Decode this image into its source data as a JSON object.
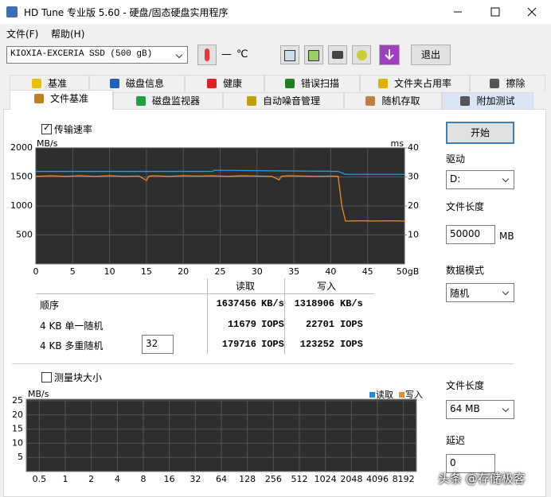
{
  "window": {
    "title": "HD Tune 专业版 5.60 - 硬盘/固态硬盘实用程序"
  },
  "menu": [
    "文件(F)",
    "帮助(H)"
  ],
  "toolbar": {
    "drive": "KIOXIA-EXCERIA SSD (500 gB)",
    "temperature": "—",
    "temperature_unit": "℃",
    "exit": "退出"
  },
  "tabs": {
    "row1": [
      "基准",
      "磁盘信息",
      "健康",
      "错误扫描",
      "文件夹占用率",
      "擦除"
    ],
    "row2": [
      "文件基准",
      "磁盘监视器",
      "自动噪音管理",
      "随机存取",
      "附加测试"
    ]
  },
  "transfer": {
    "checkbox": "传输速率",
    "checked": true
  },
  "results": {
    "headers": [
      "读取",
      "写入"
    ],
    "rows": [
      {
        "label": "顺序",
        "read": 1637456,
        "read_unit": "KB/s",
        "write": 1318906,
        "write_unit": "KB/s"
      },
      {
        "label": "4 KB 单一随机",
        "read": 11679,
        "read_unit": "IOPS",
        "write": 22701,
        "write_unit": "IOPS"
      },
      {
        "label": "4 KB 多重随机",
        "read": 179716,
        "read_unit": "IOPS",
        "write": 123252,
        "write_unit": "IOPS"
      }
    ],
    "queue_depth": 32
  },
  "settings": {
    "start": "开始",
    "drive_label": "驱动",
    "drive": "D:",
    "file_length_label": "文件长度",
    "file_length": 50000,
    "file_length_unit": "MB",
    "data_mode_label": "数据模式",
    "data_mode": "随机"
  },
  "block": {
    "checkbox": "测量块大小",
    "checked": false,
    "file_length_label": "文件长度",
    "file_length": "64 MB",
    "delay_label": "延迟",
    "delay": 0
  },
  "watermark": "头条 @存储极客",
  "chart_data": [
    {
      "type": "line",
      "y_label": "MB/s",
      "y2_label": "ms",
      "xlim": [
        0,
        50
      ],
      "xticks": [
        0,
        5,
        10,
        15,
        20,
        25,
        30,
        35,
        40,
        45,
        {
          "value": 50,
          "label": "50gB"
        }
      ],
      "ylim": [
        0,
        2000
      ],
      "yticks": [
        500,
        1000,
        1500,
        2000
      ],
      "y2lim": [
        0,
        40
      ],
      "y2ticks": [
        10,
        20,
        30,
        40
      ],
      "grid": true,
      "series": [
        {
          "color": "#1e9ee0",
          "x": [
            0,
            24,
            24.2,
            41,
            42,
            50
          ],
          "values": [
            1595,
            1595,
            1615,
            1595,
            1545,
            1545
          ]
        },
        {
          "color": "#f08a24",
          "x": [
            0,
            2,
            4,
            6,
            8,
            10,
            12,
            14,
            15,
            15.3,
            16,
            18,
            20,
            22,
            24,
            26,
            28,
            30,
            32,
            33,
            33.3,
            34,
            36,
            38,
            40,
            41,
            41.5,
            42,
            44,
            46,
            48,
            50
          ],
          "values": [
            1510,
            1520,
            1510,
            1520,
            1510,
            1520,
            1510,
            1515,
            1440,
            1510,
            1520,
            1510,
            1520,
            1515,
            1520,
            1510,
            1520,
            1515,
            1510,
            1450,
            1510,
            1520,
            1515,
            1510,
            1515,
            1510,
            1000,
            740,
            745,
            740,
            745,
            740
          ]
        }
      ]
    },
    {
      "type": "bar",
      "y_label": "MB/s",
      "categories": [
        "0.5",
        "1",
        "2",
        "4",
        "8",
        "16",
        "32",
        "64",
        "128",
        "256",
        "512",
        "1024",
        "2048",
        "4096",
        "8192"
      ],
      "ylim": [
        0,
        25
      ],
      "yticks": [
        5,
        10,
        15,
        20,
        25
      ],
      "grid": true,
      "series": [
        {
          "name": "读取",
          "color": "#1e8ed8"
        },
        {
          "name": "写入",
          "color": "#f08a24"
        }
      ]
    }
  ]
}
